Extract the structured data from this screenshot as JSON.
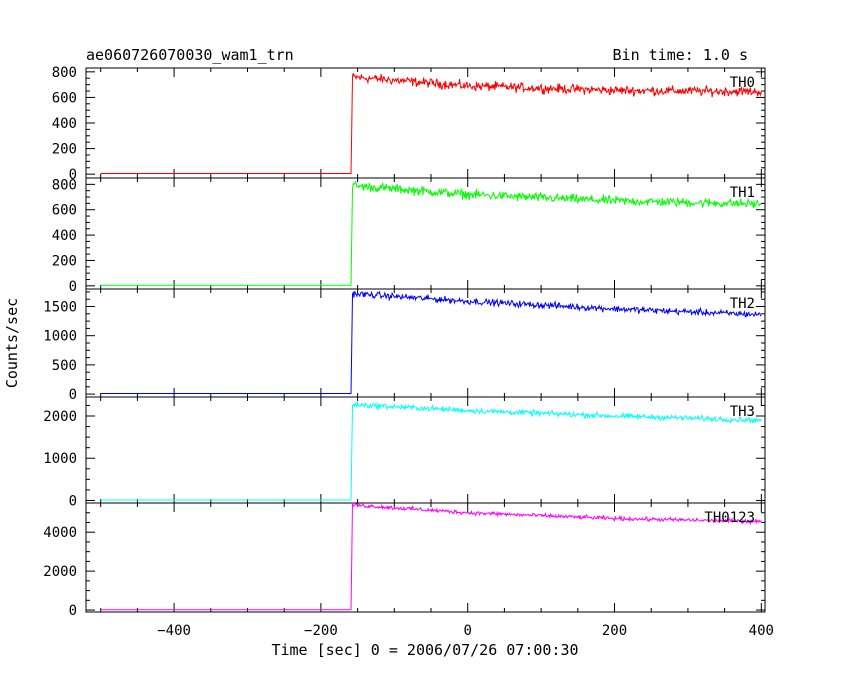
{
  "chart_data": {
    "type": "line",
    "title": "ae060726070030_wam1_trn",
    "bin_time_label": "Bin time: 1.0 s",
    "xlabel": "Time [sec] 0 = 2006/07/26 07:00:30",
    "ylabel": "Counts/sec",
    "xlim": [
      -520,
      405
    ],
    "x_ticks": [
      -400,
      -200,
      0,
      200,
      400
    ],
    "x_tick_labels": [
      "−400",
      "−200",
      "0",
      "200",
      "400"
    ],
    "trigger_time": -157,
    "series": [
      {
        "name": "TH0",
        "color": "#ff0000",
        "ylim": [
          -30,
          830
        ],
        "y_ticks": [
          0,
          200,
          400,
          600,
          800
        ],
        "y_tick_labels": [
          "0",
          "200",
          "400",
          "600",
          "800"
        ],
        "baseline": 5,
        "profile": [
          [
            -157,
            760
          ],
          [
            0,
            690
          ],
          [
            200,
            655
          ],
          [
            400,
            645
          ]
        ],
        "noise": 40
      },
      {
        "name": "TH1",
        "color": "#00ff00",
        "ylim": [
          -25,
          850
        ],
        "y_ticks": [
          0,
          200,
          400,
          600,
          800
        ],
        "y_tick_labels": [
          "0",
          "200",
          "400",
          "600",
          "800"
        ],
        "baseline": 5,
        "profile": [
          [
            -157,
            790
          ],
          [
            0,
            720
          ],
          [
            200,
            670
          ],
          [
            400,
            645
          ]
        ],
        "noise": 40
      },
      {
        "name": "TH2",
        "color": "#0000ff",
        "ylim": [
          -50,
          1800
        ],
        "y_ticks": [
          0,
          500,
          1000,
          1500
        ],
        "y_tick_labels": [
          "0",
          "500",
          "1000",
          "1500"
        ],
        "baseline": 10,
        "profile": [
          [
            -157,
            1720
          ],
          [
            0,
            1590
          ],
          [
            200,
            1460
          ],
          [
            400,
            1360
          ]
        ],
        "noise": 60
      },
      {
        "name": "TH3",
        "color": "#00ffff",
        "ylim": [
          -60,
          2450
        ],
        "y_ticks": [
          0,
          1000,
          2000
        ],
        "y_tick_labels": [
          "0",
          "1000",
          "2000"
        ],
        "baseline": 10,
        "profile": [
          [
            -157,
            2270
          ],
          [
            0,
            2130
          ],
          [
            200,
            2000
          ],
          [
            400,
            1900
          ]
        ],
        "noise": 70
      },
      {
        "name": "TH0123",
        "color": "#ff00ff",
        "ylim": [
          -100,
          5500
        ],
        "y_ticks": [
          0,
          2000,
          4000
        ],
        "y_tick_labels": [
          "0",
          "2000",
          "4000"
        ],
        "baseline": 20,
        "profile": [
          [
            -157,
            5400
          ],
          [
            0,
            5000
          ],
          [
            200,
            4700
          ],
          [
            400,
            4550
          ]
        ],
        "noise": 110
      }
    ]
  }
}
